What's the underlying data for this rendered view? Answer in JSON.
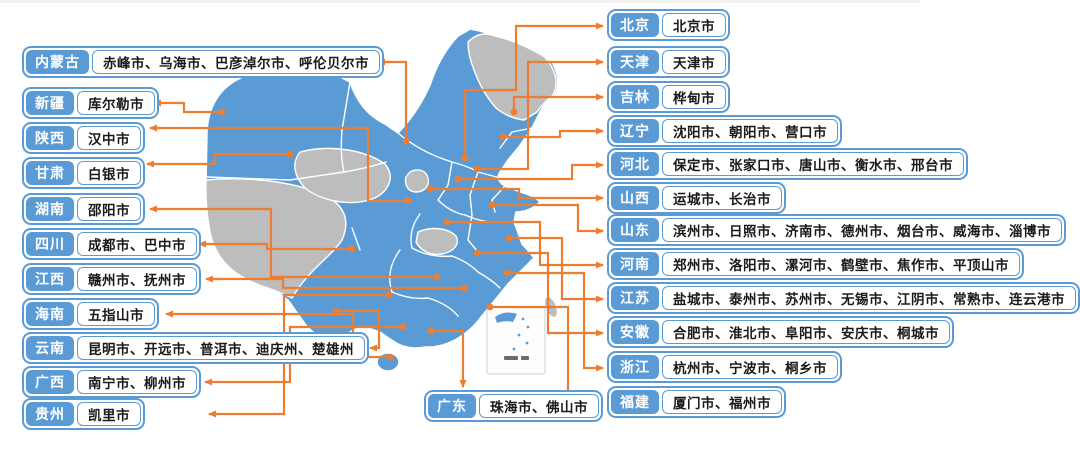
{
  "colors": {
    "map_blue": "#5B9BD5",
    "connector_orange": "#ED7D31",
    "uncovered_gray": "#BDBDBD",
    "text_ink": "#1A1A1A"
  },
  "left_labels": [
    {
      "id": "neimenggu",
      "province": "内蒙古",
      "cities": "赤峰市、乌海市、巴彦淖尔市、呼伦贝尔市"
    },
    {
      "id": "xinjiang",
      "province": "新疆",
      "cities": "库尔勒市"
    },
    {
      "id": "shaanxi",
      "province": "陕西",
      "cities": "汉中市"
    },
    {
      "id": "gansu",
      "province": "甘肃",
      "cities": "白银市"
    },
    {
      "id": "hunan",
      "province": "湖南",
      "cities": "邵阳市"
    },
    {
      "id": "sichuan",
      "province": "四川",
      "cities": "成都市、巴中市"
    },
    {
      "id": "jiangxi",
      "province": "江西",
      "cities": "赣州市、抚州市"
    },
    {
      "id": "hainan",
      "province": "海南",
      "cities": "五指山市"
    },
    {
      "id": "yunnan",
      "province": "云南",
      "cities": "昆明市、开远市、普洱市、迪庆州、楚雄州"
    },
    {
      "id": "guangxi",
      "province": "广西",
      "cities": "南宁市、柳州市"
    },
    {
      "id": "guizhou",
      "province": "贵州",
      "cities": "凯里市"
    }
  ],
  "right_labels": [
    {
      "id": "beijing",
      "province": "北京",
      "cities": "北京市"
    },
    {
      "id": "tianjin",
      "province": "天津",
      "cities": "天津市"
    },
    {
      "id": "jilin",
      "province": "吉林",
      "cities": "桦甸市"
    },
    {
      "id": "liaoning",
      "province": "辽宁",
      "cities": "沈阳市、朝阳市、营口市"
    },
    {
      "id": "hebei",
      "province": "河北",
      "cities": "保定市、张家口市、唐山市、衡水市、邢台市"
    },
    {
      "id": "shanxi",
      "province": "山西",
      "cities": "运城市、长治市"
    },
    {
      "id": "shandong",
      "province": "山东",
      "cities": "滨州市、日照市、济南市、德州市、烟台市、威海市、淄博市"
    },
    {
      "id": "henan",
      "province": "河南",
      "cities": "郑州市、洛阳市、漯河市、鹤壁市、焦作市、平顶山市"
    },
    {
      "id": "jiangsu",
      "province": "江苏",
      "cities": "盐城市、泰州市、苏州市、无锡市、江阴市、常熟市、连云港市"
    },
    {
      "id": "anhui",
      "province": "安徽",
      "cities": "合肥市、淮北市、阜阳市、安庆市、桐城市"
    },
    {
      "id": "zhejiang",
      "province": "浙江",
      "cities": "杭州市、宁波市、桐乡市"
    },
    {
      "id": "fujian",
      "province": "福建",
      "cities": "厦门市、福州市"
    }
  ],
  "bottom_labels": [
    {
      "id": "guangdong",
      "province": "广东",
      "cities": "珠海市、佛山市"
    }
  ]
}
